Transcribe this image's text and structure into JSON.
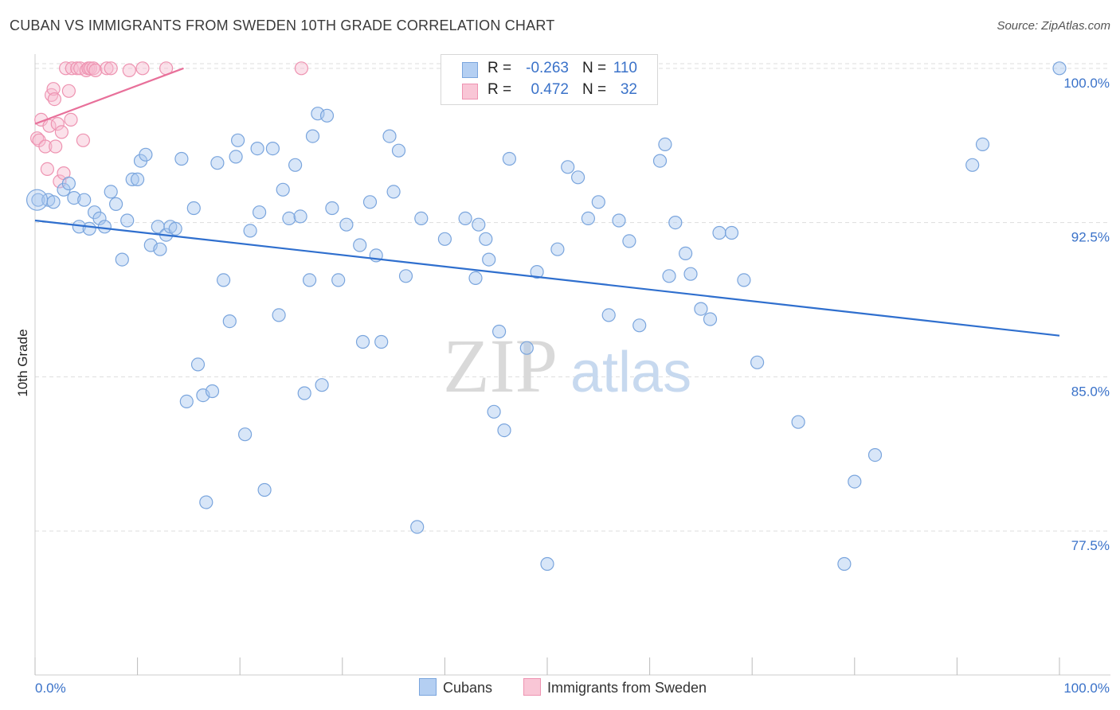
{
  "header": {
    "title": "CUBAN VS IMMIGRANTS FROM SWEDEN 10TH GRADE CORRELATION CHART",
    "source": "Source: ZipAtlas.com"
  },
  "watermark": {
    "zip": "ZIP",
    "atlas": "atlas"
  },
  "legend": {
    "rows": [
      {
        "r_label": "R = ",
        "r_value": "-0.263",
        "n_label": "N = ",
        "n_value": "110"
      },
      {
        "r_label": "R = ",
        "r_value": "0.472",
        "n_label": "N = ",
        "n_value": "32"
      }
    ]
  },
  "bottom_legend": {
    "series1": "Cubans",
    "series2": "Immigrants from Sweden"
  },
  "colors": {
    "cubans_fill": "#a9c8ef",
    "cubans_stroke": "#7aa5dd",
    "cubans_line": "#2f6fce",
    "sweden_fill": "#f7bdd0",
    "sweden_stroke": "#ee93b1",
    "sweden_line": "#e8709a",
    "axis_text": "#3a72c9",
    "grid": "#dddddd"
  },
  "chart_data": {
    "type": "scatter",
    "title": "CUBAN VS IMMIGRANTS FROM SWEDEN 10TH GRADE CORRELATION CHART",
    "xlabel": "",
    "ylabel": "10th Grade",
    "xlim": [
      0,
      100
    ],
    "ylim": [
      70.5,
      101
    ],
    "x_tick_labels": [
      "0.0%",
      "100.0%"
    ],
    "y_ticks": [
      77.5,
      85.0,
      92.5,
      100.0
    ],
    "y_tick_labels": [
      "77.5%",
      "85.0%",
      "92.5%",
      "100.0%"
    ],
    "grid": true,
    "legend_position": "top-center",
    "series": [
      {
        "name": "Cubans",
        "r": -0.263,
        "n": 110,
        "trend": {
          "x": [
            0,
            100
          ],
          "y": [
            92.6,
            87.0
          ]
        },
        "points": [
          [
            0.3,
            93.6
          ],
          [
            1.3,
            93.6
          ],
          [
            1.8,
            93.5
          ],
          [
            2.8,
            94.1
          ],
          [
            3.3,
            94.4
          ],
          [
            3.8,
            93.7
          ],
          [
            4.3,
            92.3
          ],
          [
            4.8,
            93.6
          ],
          [
            5.3,
            92.2
          ],
          [
            5.8,
            93.0
          ],
          [
            6.3,
            92.7
          ],
          [
            6.8,
            92.3
          ],
          [
            7.4,
            94.0
          ],
          [
            7.9,
            93.4
          ],
          [
            8.5,
            90.7
          ],
          [
            9.0,
            92.6
          ],
          [
            9.5,
            94.6
          ],
          [
            10.0,
            94.6
          ],
          [
            10.3,
            95.5
          ],
          [
            10.8,
            95.8
          ],
          [
            11.3,
            91.4
          ],
          [
            12.0,
            92.3
          ],
          [
            12.2,
            91.2
          ],
          [
            12.8,
            91.9
          ],
          [
            13.2,
            92.3
          ],
          [
            13.7,
            92.2
          ],
          [
            14.3,
            95.6
          ],
          [
            14.8,
            83.8
          ],
          [
            15.5,
            93.2
          ],
          [
            15.9,
            85.6
          ],
          [
            16.4,
            84.1
          ],
          [
            16.7,
            78.9
          ],
          [
            17.3,
            84.3
          ],
          [
            17.8,
            95.4
          ],
          [
            18.4,
            89.7
          ],
          [
            19.0,
            87.7
          ],
          [
            19.6,
            95.7
          ],
          [
            19.8,
            96.5
          ],
          [
            20.5,
            82.2
          ],
          [
            21.0,
            92.1
          ],
          [
            21.7,
            96.1
          ],
          [
            21.9,
            93.0
          ],
          [
            22.4,
            79.5
          ],
          [
            23.2,
            96.1
          ],
          [
            23.8,
            88.0
          ],
          [
            24.2,
            94.1
          ],
          [
            24.8,
            92.7
          ],
          [
            25.4,
            95.3
          ],
          [
            25.9,
            92.8
          ],
          [
            26.3,
            84.2
          ],
          [
            26.8,
            89.7
          ],
          [
            27.1,
            96.7
          ],
          [
            27.6,
            97.8
          ],
          [
            28.0,
            84.6
          ],
          [
            28.5,
            97.7
          ],
          [
            29.0,
            93.2
          ],
          [
            29.6,
            89.7
          ],
          [
            30.4,
            92.4
          ],
          [
            31.7,
            91.4
          ],
          [
            32.0,
            86.7
          ],
          [
            32.7,
            93.5
          ],
          [
            33.3,
            90.9
          ],
          [
            33.8,
            86.7
          ],
          [
            34.6,
            96.7
          ],
          [
            35.0,
            94.0
          ],
          [
            35.5,
            96.0
          ],
          [
            36.2,
            89.9
          ],
          [
            37.3,
            77.7
          ],
          [
            37.7,
            92.7
          ],
          [
            40.0,
            91.7
          ],
          [
            42.0,
            92.7
          ],
          [
            43.0,
            89.8
          ],
          [
            43.3,
            92.4
          ],
          [
            44.0,
            91.7
          ],
          [
            44.3,
            90.7
          ],
          [
            44.8,
            83.3
          ],
          [
            45.3,
            87.2
          ],
          [
            45.8,
            82.4
          ],
          [
            46.3,
            95.6
          ],
          [
            48.0,
            86.4
          ],
          [
            49.0,
            90.1
          ],
          [
            50.0,
            75.9
          ],
          [
            51.0,
            91.2
          ],
          [
            52.0,
            95.2
          ],
          [
            53.0,
            94.7
          ],
          [
            54.0,
            92.7
          ],
          [
            55.0,
            93.5
          ],
          [
            56.0,
            88.0
          ],
          [
            57.0,
            92.6
          ],
          [
            58.0,
            91.6
          ],
          [
            59.0,
            87.5
          ],
          [
            61.0,
            95.5
          ],
          [
            61.5,
            96.3
          ],
          [
            61.9,
            89.9
          ],
          [
            62.5,
            92.5
          ],
          [
            63.5,
            91.0
          ],
          [
            64.0,
            90.0
          ],
          [
            65.0,
            88.3
          ],
          [
            65.9,
            87.8
          ],
          [
            66.8,
            92.0
          ],
          [
            68.0,
            92.0
          ],
          [
            69.2,
            89.7
          ],
          [
            70.5,
            85.7
          ],
          [
            74.5,
            82.8
          ],
          [
            80.0,
            79.9
          ],
          [
            82.0,
            81.2
          ],
          [
            79.0,
            75.9
          ],
          [
            91.5,
            95.3
          ],
          [
            92.5,
            96.3
          ],
          [
            100.0,
            100.0
          ]
        ]
      },
      {
        "name": "Immigrants from Sweden",
        "r": 0.472,
        "n": 32,
        "trend": {
          "x": [
            0,
            14.5
          ],
          "y": [
            97.3,
            100.0
          ]
        },
        "points": [
          [
            0.2,
            96.6
          ],
          [
            0.4,
            96.5
          ],
          [
            0.6,
            97.5
          ],
          [
            1.0,
            96.2
          ],
          [
            1.2,
            95.1
          ],
          [
            1.4,
            97.2
          ],
          [
            1.6,
            98.7
          ],
          [
            1.8,
            99.0
          ],
          [
            1.9,
            98.5
          ],
          [
            2.0,
            96.2
          ],
          [
            2.2,
            97.3
          ],
          [
            2.4,
            94.5
          ],
          [
            2.6,
            96.9
          ],
          [
            2.8,
            94.9
          ],
          [
            3.0,
            100.0
          ],
          [
            3.3,
            98.9
          ],
          [
            3.6,
            100.0
          ],
          [
            3.5,
            97.5
          ],
          [
            4.1,
            100.0
          ],
          [
            4.4,
            100.0
          ],
          [
            4.7,
            96.5
          ],
          [
            5.0,
            99.9
          ],
          [
            5.2,
            100.0
          ],
          [
            5.4,
            100.0
          ],
          [
            5.7,
            100.0
          ],
          [
            5.9,
            99.9
          ],
          [
            7.0,
            100.0
          ],
          [
            7.4,
            100.0
          ],
          [
            9.2,
            99.9
          ],
          [
            10.5,
            100.0
          ],
          [
            12.8,
            100.0
          ],
          [
            26.0,
            100.0
          ]
        ]
      }
    ]
  }
}
